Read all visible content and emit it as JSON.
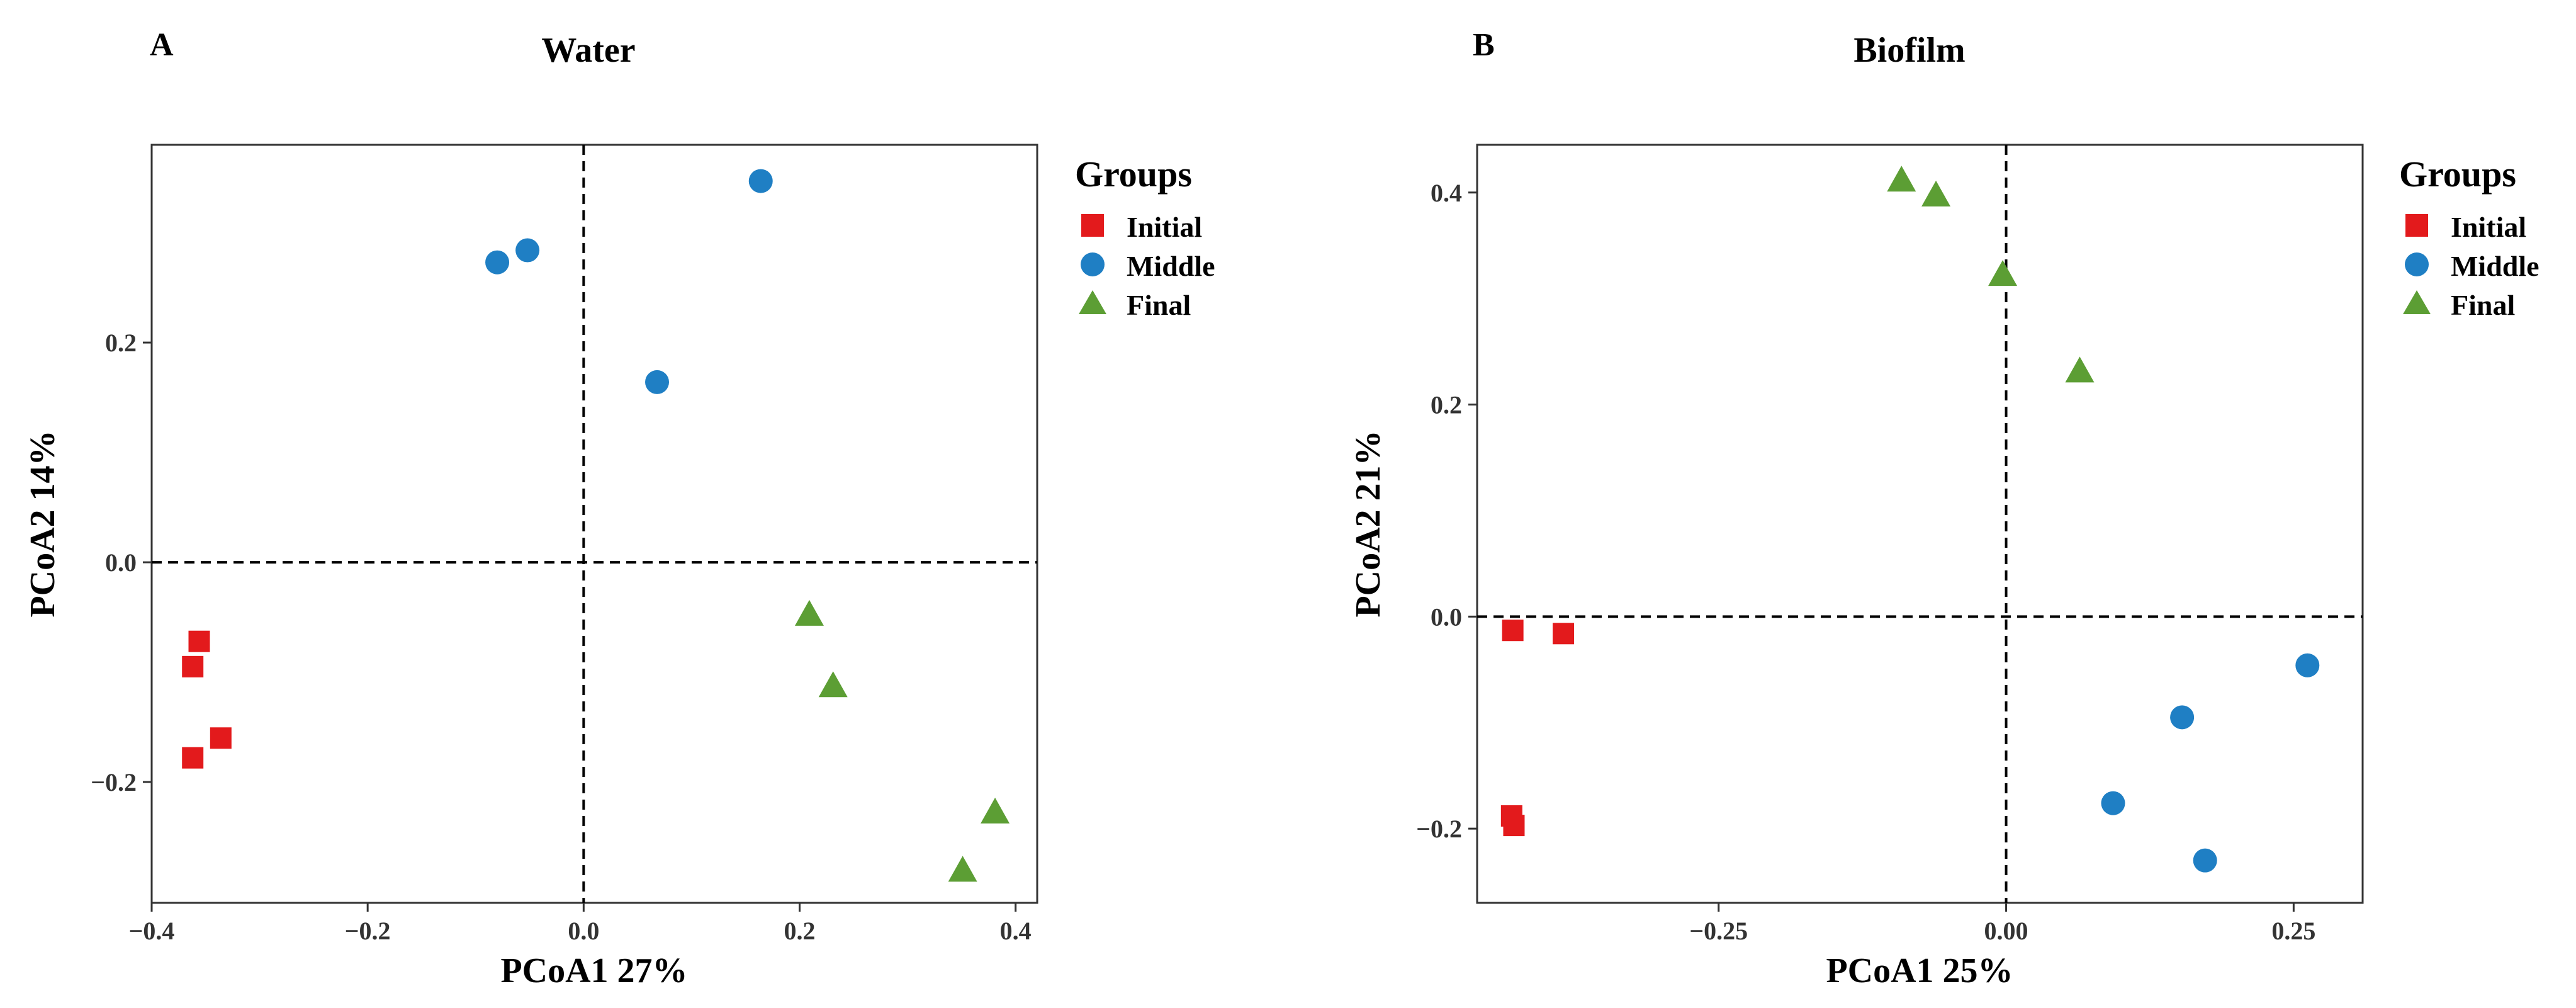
{
  "legend": {
    "title": "Groups",
    "entries": [
      {
        "name": "Initial",
        "color": "#e31a1c",
        "shape": "square"
      },
      {
        "name": "Middle",
        "color": "#1f7fc4",
        "shape": "circle"
      },
      {
        "name": "Final",
        "color": "#5c9e34",
        "shape": "triangle"
      }
    ]
  },
  "chart_data": [
    {
      "type": "scatter",
      "panel_label": "A",
      "title": "Water",
      "xlabel": "PCoA1 27%",
      "ylabel": "PCoA2 14%",
      "xlim": [
        -0.4,
        0.42
      ],
      "ylim": [
        -0.31,
        0.38
      ],
      "xticks": [
        -0.4,
        -0.2,
        0.0,
        0.2,
        0.4
      ],
      "xtick_labels": [
        "−0.4",
        "−0.2",
        "0.0",
        "0.2",
        "0.4"
      ],
      "yticks": [
        -0.2,
        0.0,
        0.2
      ],
      "ytick_labels": [
        "−0.2",
        "0.0",
        "0.2"
      ],
      "reference_lines": {
        "x": 0,
        "y": 0
      },
      "series": [
        {
          "name": "Initial",
          "points": [
            [
              -0.356,
              -0.072
            ],
            [
              -0.362,
              -0.095
            ],
            [
              -0.336,
              -0.16
            ],
            [
              -0.362,
              -0.178
            ]
          ]
        },
        {
          "name": "Middle",
          "points": [
            [
              -0.08,
              0.273
            ],
            [
              -0.052,
              0.284
            ],
            [
              0.164,
              0.347
            ],
            [
              0.068,
              0.164
            ]
          ]
        },
        {
          "name": "Final",
          "points": [
            [
              0.209,
              -0.048
            ],
            [
              0.231,
              -0.113
            ],
            [
              0.381,
              -0.228
            ],
            [
              0.351,
              -0.281
            ]
          ]
        }
      ]
    },
    {
      "type": "scatter",
      "panel_label": "B",
      "title": "Biofilm",
      "xlabel": "PCoA1 25%",
      "ylabel": "PCoA2 21%",
      "xlim": [
        -0.46,
        0.31
      ],
      "ylim": [
        -0.27,
        0.445
      ],
      "xticks": [
        -0.25,
        0.0,
        0.25
      ],
      "xtick_labels": [
        "−0.25",
        "0.00",
        "0.25"
      ],
      "yticks": [
        -0.2,
        0.0,
        0.2,
        0.4
      ],
      "ytick_labels": [
        "−0.2",
        "0.0",
        "0.2",
        "0.4"
      ],
      "reference_lines": {
        "x": 0,
        "y": 0
      },
      "series": [
        {
          "name": "Initial",
          "points": [
            [
              -0.429,
              -0.013
            ],
            [
              -0.385,
              -0.016
            ],
            [
              -0.43,
              -0.188
            ],
            [
              -0.428,
              -0.197
            ]
          ]
        },
        {
          "name": "Middle",
          "points": [
            [
              0.262,
              -0.046
            ],
            [
              0.153,
              -0.095
            ],
            [
              0.093,
              -0.176
            ],
            [
              0.173,
              -0.23
            ]
          ]
        },
        {
          "name": "Final",
          "points": [
            [
              -0.091,
              0.411
            ],
            [
              -0.061,
              0.397
            ],
            [
              -0.003,
              0.322
            ],
            [
              0.064,
              0.231
            ]
          ]
        }
      ]
    }
  ]
}
